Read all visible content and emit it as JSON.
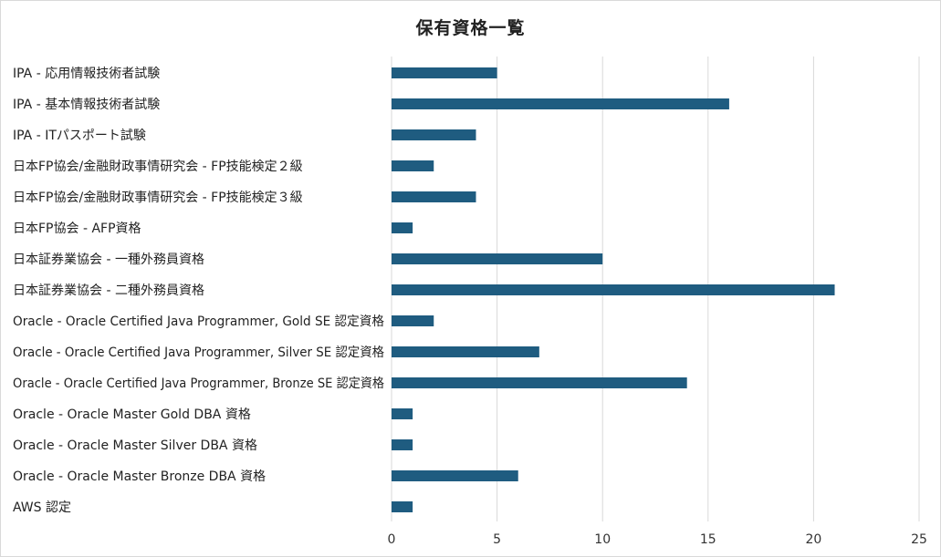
{
  "chart_data": {
    "type": "bar",
    "orientation": "horizontal",
    "title": "保有資格一覧",
    "xlabel": "",
    "ylabel": "",
    "xlim": [
      0,
      25
    ],
    "x_ticks": [
      0,
      5,
      10,
      15,
      20,
      25
    ],
    "grid": "vertical",
    "legend": "none",
    "bar_color": "#1f5c80",
    "gridline_color": "#d9d9d9",
    "categories": [
      "IPA - 応用情報技術者試験",
      "IPA - 基本情報技術者試験",
      "IPA - ITパスポート試験",
      "日本FP協会/金融財政事情研究会 - FP技能検定２級",
      "日本FP協会/金融財政事情研究会 - FP技能検定３級",
      "日本FP協会 - AFP資格",
      "日本証券業協会 - 一種外務員資格",
      "日本証券業協会 - 二種外務員資格",
      "Oracle - Oracle Certified Java Programmer, Gold SE 認定資格",
      "Oracle - Oracle Certified Java Programmer, Silver SE 認定資格",
      "Oracle - Oracle Certified Java Programmer, Bronze SE 認定資格",
      "Oracle - Oracle Master Gold DBA 資格",
      "Oracle - Oracle Master Silver DBA 資格",
      "Oracle - Oracle Master Bronze DBA 資格",
      "AWS 認定"
    ],
    "values": [
      5,
      16,
      4,
      2,
      4,
      1,
      10,
      21,
      2,
      7,
      14,
      1,
      1,
      6,
      1
    ]
  }
}
